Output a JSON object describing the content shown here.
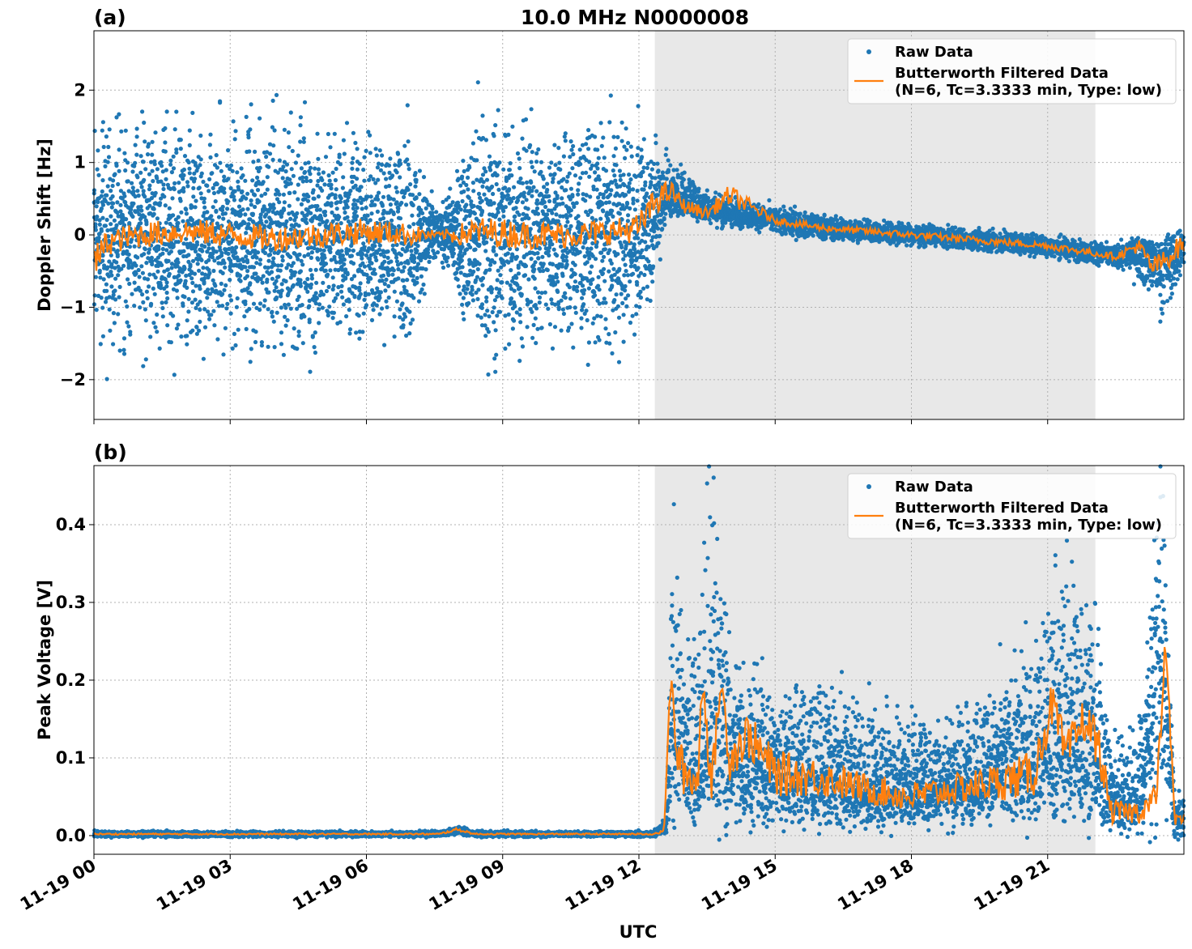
{
  "title": "10.0 MHz N0000008",
  "colors": {
    "raw": "#1f77b4",
    "filtered": "#ff7f0e",
    "shade": "#e8e8e8",
    "grid": "#b0b0b0"
  },
  "chart_data": [
    {
      "type": "scatter",
      "panel_label": "(a)",
      "title": "10.0 MHz N0000008",
      "ylabel": "Doppler Shift [Hz]",
      "xlabel": "",
      "xlim": [
        0,
        24
      ],
      "ylim": [
        -2.55,
        2.82
      ],
      "yticks": [
        -2,
        -1,
        0,
        1,
        2
      ],
      "ytick_labels": [
        "−2",
        "−1",
        "0",
        "1",
        "2"
      ],
      "xticks": [
        0,
        3,
        6,
        9,
        12,
        15,
        18,
        21
      ],
      "xtick_labels": [],
      "shaded_region": [
        12.35,
        22.05
      ],
      "grid": true,
      "legend_position": "top-right",
      "legend": [
        "Raw Data",
        "Butterworth Filtered Data",
        "(N=6, Tc=3.3333 min, Type: low)"
      ],
      "series": [
        {
          "name": "Raw Data",
          "x": [
            0,
            1,
            2,
            3,
            4,
            5,
            6,
            7,
            7.6,
            8.5,
            9.5,
            10.5,
            11.5,
            12,
            12.3,
            12.6,
            13,
            13.5,
            14,
            15,
            16,
            17,
            18,
            19,
            20,
            21,
            22,
            22.5,
            23,
            23.5,
            24
          ],
          "y": [
            0,
            0.05,
            0,
            0,
            -0.05,
            0,
            0,
            0,
            0,
            0,
            0,
            0,
            0,
            0.1,
            0.3,
            0.55,
            0.45,
            0.35,
            0.3,
            0.2,
            0.1,
            0.05,
            0,
            -0.05,
            -0.1,
            -0.15,
            -0.25,
            -0.3,
            -0.2,
            -0.35,
            -0.2
          ],
          "spread_upper": [
            1.2,
            1.2,
            1.3,
            1.2,
            1.2,
            1.3,
            1.2,
            1.1,
            0.2,
            1.4,
            1.3,
            1.2,
            1.3,
            1.1,
            0.8,
            0.5,
            0.35,
            0.25,
            0.2,
            0.15,
            0.15,
            0.12,
            0.12,
            0.12,
            0.12,
            0.12,
            0.12,
            0.12,
            0.15,
            0.2,
            0.35
          ],
          "spread_lower": [
            1.2,
            1.2,
            1.3,
            1.2,
            1.2,
            1.3,
            1.2,
            1.1,
            0.2,
            1.4,
            1.3,
            1.2,
            1.3,
            1.1,
            0.8,
            0.3,
            0.15,
            0.15,
            0.15,
            0.15,
            0.15,
            0.12,
            0.12,
            0.12,
            0.12,
            0.12,
            0.12,
            0.12,
            0.3,
            0.6,
            0.35
          ]
        },
        {
          "name": "Butterworth Filtered Data",
          "x": [
            0,
            0.3,
            1,
            2,
            3,
            4,
            5,
            6,
            7,
            7.6,
            8,
            8.5,
            9.5,
            10.5,
            11.5,
            12,
            12.4,
            12.7,
            13,
            13.5,
            14,
            15,
            16,
            17,
            18,
            19,
            20,
            21,
            22,
            22.5,
            23,
            23.3,
            23.6,
            24
          ],
          "y": [
            -0.4,
            -0.1,
            0,
            0.05,
            0,
            -0.05,
            0,
            0.05,
            0,
            0,
            0,
            0.05,
            0,
            0,
            0.05,
            0.1,
            0.5,
            0.6,
            0.4,
            0.3,
            0.55,
            0.2,
            0.1,
            0.05,
            0,
            -0.05,
            -0.1,
            -0.15,
            -0.25,
            -0.3,
            -0.15,
            -0.45,
            -0.35,
            -0.1
          ],
          "noise": [
            0.25,
            0.18,
            0.18,
            0.18,
            0.18,
            0.18,
            0.18,
            0.18,
            0.15,
            0.04,
            0.15,
            0.2,
            0.2,
            0.18,
            0.18,
            0.2,
            0.2,
            0.15,
            0.1,
            0.08,
            0.15,
            0.05,
            0.05,
            0.05,
            0.05,
            0.05,
            0.05,
            0.05,
            0.05,
            0.05,
            0.1,
            0.15,
            0.15,
            0.15
          ]
        }
      ]
    },
    {
      "type": "scatter",
      "panel_label": "(b)",
      "title": "",
      "ylabel": "Peak Voltage [V]",
      "xlabel": "UTC",
      "xlim": [
        0,
        24
      ],
      "ylim": [
        -0.024,
        0.476
      ],
      "yticks": [
        0,
        0.1,
        0.2,
        0.3,
        0.4
      ],
      "ytick_labels": [
        "0.0",
        "0.1",
        "0.2",
        "0.3",
        "0.4"
      ],
      "xticks": [
        0,
        3,
        6,
        9,
        12,
        15,
        18,
        21
      ],
      "xtick_labels": [
        "11-19 00",
        "11-19 03",
        "11-19 06",
        "11-19 09",
        "11-19 12",
        "11-19 15",
        "11-19 18",
        "11-19 21"
      ],
      "shaded_region": [
        12.35,
        22.05
      ],
      "grid": true,
      "legend_position": "top-right",
      "legend": [
        "Raw Data",
        "Butterworth Filtered Data",
        "(N=6, Tc=3.3333 min, Type: low)"
      ],
      "series": [
        {
          "name": "Raw Data",
          "x": [
            0,
            7.6,
            8.0,
            8.4,
            12.3,
            12.6,
            12.75,
            13.0,
            13.3,
            13.5,
            13.7,
            14.0,
            15,
            16,
            17,
            18,
            19,
            20,
            20.7,
            21.2,
            21.6,
            22,
            22.4,
            23,
            23.5,
            23.8,
            24
          ],
          "y": [
            0.002,
            0.002,
            0.007,
            0.002,
            0.002,
            0.01,
            0.15,
            0.1,
            0.09,
            0.12,
            0.16,
            0.1,
            0.08,
            0.075,
            0.06,
            0.06,
            0.065,
            0.08,
            0.1,
            0.12,
            0.13,
            0.12,
            0.05,
            0.04,
            0.25,
            0.02,
            0.02
          ],
          "spread_upper": [
            0.003,
            0.003,
            0.005,
            0.003,
            0.003,
            0.01,
            0.2,
            0.12,
            0.15,
            0.3,
            0.25,
            0.12,
            0.1,
            0.1,
            0.09,
            0.08,
            0.08,
            0.1,
            0.12,
            0.2,
            0.2,
            0.15,
            0.06,
            0.08,
            0.2,
            0.03,
            0.02
          ],
          "spread_lower": [
            0.003,
            0.003,
            0.004,
            0.003,
            0.003,
            0.008,
            0.1,
            0.07,
            0.06,
            0.09,
            0.12,
            0.07,
            0.06,
            0.05,
            0.04,
            0.04,
            0.04,
            0.05,
            0.07,
            0.09,
            0.1,
            0.09,
            0.04,
            0.03,
            0.2,
            0.02,
            0.02
          ]
        },
        {
          "name": "Butterworth Filtered Data",
          "x": [
            0,
            7.6,
            8.0,
            8.4,
            12.3,
            12.55,
            12.7,
            12.85,
            13.0,
            13.3,
            13.4,
            13.6,
            13.8,
            14.0,
            14.4,
            15,
            16,
            17,
            18,
            19,
            20,
            20.7,
            21.1,
            21.4,
            21.8,
            22.1,
            22.4,
            23,
            23.4,
            23.6,
            23.8,
            24
          ],
          "y": [
            0.002,
            0.002,
            0.008,
            0.002,
            0.002,
            0.005,
            0.2,
            0.1,
            0.08,
            0.07,
            0.21,
            0.06,
            0.2,
            0.1,
            0.13,
            0.08,
            0.075,
            0.06,
            0.05,
            0.06,
            0.07,
            0.08,
            0.17,
            0.1,
            0.15,
            0.12,
            0.03,
            0.03,
            0.05,
            0.25,
            0.02,
            0.02
          ],
          "noise": [
            0.001,
            0.001,
            0.002,
            0.001,
            0.001,
            0.002,
            0.02,
            0.03,
            0.03,
            0.03,
            0.02,
            0.03,
            0.02,
            0.03,
            0.03,
            0.03,
            0.025,
            0.02,
            0.02,
            0.02,
            0.025,
            0.03,
            0.03,
            0.03,
            0.03,
            0.03,
            0.015,
            0.015,
            0.02,
            0.02,
            0.008,
            0.008
          ]
        }
      ]
    }
  ]
}
